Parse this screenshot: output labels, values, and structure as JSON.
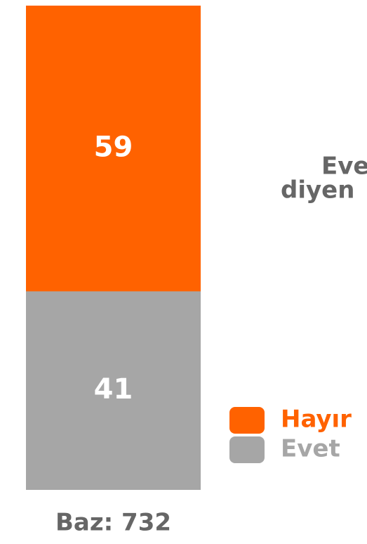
{
  "chart_data": {
    "type": "stacked_bar",
    "categories": [
      "Baz: 732"
    ],
    "series": [
      {
        "name": "Evet",
        "color": "#a6a6a6",
        "values": [
          41
        ]
      },
      {
        "name": "Hayır",
        "color": "#ff6200",
        "values": [
          59
        ]
      }
    ],
    "ylim": [
      0,
      100
    ],
    "annotations": [
      "Eve",
      "diyen"
    ]
  }
}
